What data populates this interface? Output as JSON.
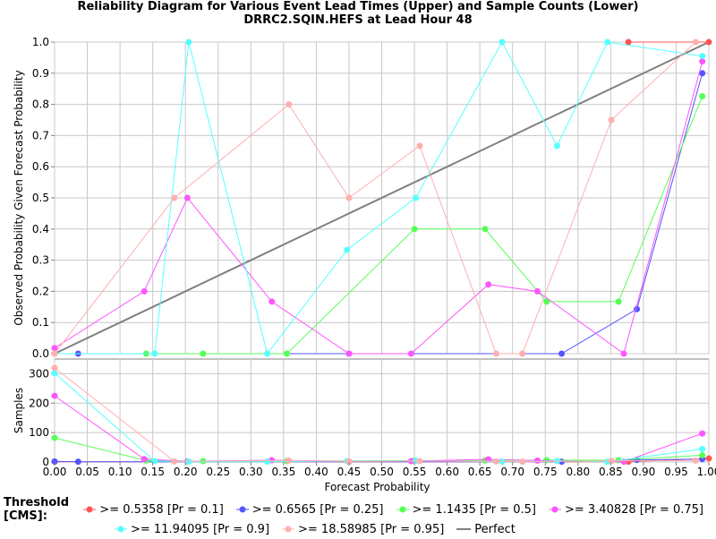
{
  "title_line1": "Reliability Diagram for Various Event Lead Times (Upper) and Sample Counts (Lower)",
  "title_line2": "DRRC2.SQIN.HEFS at Lead Hour 48",
  "legend": {
    "title": "Threshold [CMS]:",
    "perfect_label": "Perfect",
    "perfect_color": "#808080"
  },
  "chart_data": [
    {
      "type": "line",
      "name": "reliability",
      "xlabel": "Forecast Probability",
      "ylabel": "Observed Probability Given Forecast Probability",
      "xlim": [
        0,
        1
      ],
      "ylim": [
        0,
        1
      ],
      "xticks": [
        "0.00",
        "0.05",
        "0.10",
        "0.15",
        "0.20",
        "0.25",
        "0.30",
        "0.35",
        "0.40",
        "0.45",
        "0.50",
        "0.55",
        "0.60",
        "0.65",
        "0.70",
        "0.75",
        "0.80",
        "0.85",
        "0.90",
        "0.95",
        "1.00"
      ],
      "yticks": [
        "0.0",
        "0.1",
        "0.2",
        "0.3",
        "0.4",
        "0.5",
        "0.6",
        "0.7",
        "0.8",
        "0.9",
        "1.0"
      ],
      "grid": true,
      "perfect_line": [
        [
          0,
          0
        ],
        [
          1,
          1
        ]
      ],
      "series": [
        {
          "name": ">= 0.5358 [Pr = 0.1]",
          "color": "#ff5555",
          "x": [
            0.877,
            1.0
          ],
          "y": [
            1.0,
            1.0
          ]
        },
        {
          "name": ">= 0.6565 [Pr = 0.25]",
          "color": "#5555ff",
          "x": [
            0.036,
            0.45,
            0.775,
            0.89,
            0.99
          ],
          "y": [
            0.0,
            0.0,
            0.0,
            0.143,
            0.9
          ]
        },
        {
          "name": ">= 1.1435 [Pr = 0.5]",
          "color": "#55ff55",
          "x": [
            0.14,
            0.227,
            0.355,
            0.55,
            0.658,
            0.752,
            0.862,
            0.99
          ],
          "y": [
            0.0,
            0.0,
            0.0,
            0.4,
            0.4,
            0.167,
            0.167,
            0.826
          ]
        },
        {
          "name": ">= 3.40828 [Pr = 0.75]",
          "color": "#ff55ff",
          "x": [
            0.0,
            0.137,
            0.203,
            0.332,
            0.45,
            0.545,
            0.663,
            0.738,
            0.87,
            0.99
          ],
          "y": [
            0.018,
            0.2,
            0.5,
            0.167,
            0.0,
            0.0,
            0.222,
            0.2,
            0.0,
            0.938
          ]
        },
        {
          "name": ">= 11.94095 [Pr = 0.9]",
          "color": "#55ffff",
          "x": [
            0.0,
            0.153,
            0.205,
            0.325,
            0.447,
            0.552,
            0.684,
            0.768,
            0.845,
            0.99
          ],
          "y": [
            0.0,
            0.0,
            1.0,
            0.0,
            0.333,
            0.5,
            1.0,
            0.667,
            1.0,
            0.955
          ]
        },
        {
          "name": ">= 18.58985 [Pr = 0.95]",
          "color": "#ffafaf",
          "x": [
            0.0,
            0.183,
            0.358,
            0.45,
            0.558,
            0.675,
            0.715,
            0.851,
            0.98
          ],
          "y": [
            0.0,
            0.5,
            0.8,
            0.5,
            0.667,
            0.0,
            0.0,
            0.75,
            1.0
          ]
        }
      ]
    },
    {
      "type": "line",
      "name": "samples",
      "xlabel": "Forecast Probability",
      "ylabel": "Samples",
      "xlim": [
        0,
        1
      ],
      "ylim": [
        0,
        350
      ],
      "yticks": [
        "0",
        "100",
        "200",
        "300"
      ],
      "grid": true,
      "series": [
        {
          "name": ">= 0.5358 [Pr = 0.1]",
          "color": "#ff5555",
          "x": [
            0.0,
            0.877,
            1.0
          ],
          "y": [
            1,
            1,
            12
          ]
        },
        {
          "name": ">= 0.6565 [Pr = 0.25]",
          "color": "#5555ff",
          "x": [
            0.0,
            0.036,
            0.45,
            0.775,
            0.89,
            0.99
          ],
          "y": [
            2,
            1,
            1,
            1,
            7,
            10
          ]
        },
        {
          "name": ">= 1.1435 [Pr = 0.5]",
          "color": "#55ff55",
          "x": [
            0.0,
            0.14,
            0.227,
            0.355,
            0.55,
            0.658,
            0.752,
            0.862,
            0.99
          ],
          "y": [
            82,
            5,
            3,
            3,
            5,
            5,
            6,
            6,
            23
          ]
        },
        {
          "name": ">= 3.40828 [Pr = 0.75]",
          "color": "#ff55ff",
          "x": [
            0.0,
            0.137,
            0.203,
            0.332,
            0.45,
            0.545,
            0.663,
            0.738,
            0.87,
            0.99
          ],
          "y": [
            225,
            10,
            2,
            6,
            2,
            3,
            9,
            5,
            1,
            97
          ]
        },
        {
          "name": ">= 11.94095 [Pr = 0.9]",
          "color": "#55ffff",
          "x": [
            0.0,
            0.153,
            0.205,
            0.325,
            0.447,
            0.552,
            0.684,
            0.768,
            0.845,
            0.99
          ],
          "y": [
            302,
            3,
            1,
            1,
            3,
            4,
            1,
            3,
            1,
            44
          ]
        },
        {
          "name": ">= 18.58985 [Pr = 0.95]",
          "color": "#ffafaf",
          "x": [
            0.0,
            0.183,
            0.358,
            0.45,
            0.558,
            0.675,
            0.715,
            0.851,
            0.98
          ],
          "y": [
            320,
            2,
            5,
            2,
            3,
            2,
            1,
            4,
            5
          ]
        }
      ]
    }
  ]
}
